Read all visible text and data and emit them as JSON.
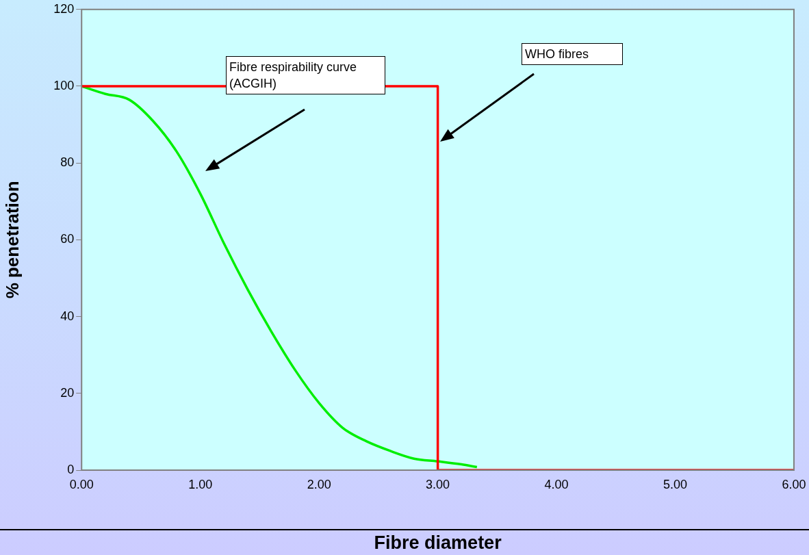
{
  "chart_data": {
    "type": "line",
    "xlabel": "Fibre diameter",
    "ylabel": "% penetration",
    "xlim": [
      0,
      6
    ],
    "xticks": [
      {
        "value": 0,
        "label": "0.00"
      },
      {
        "value": 1,
        "label": "1.00"
      },
      {
        "value": 2,
        "label": "2.00"
      },
      {
        "value": 3,
        "label": "3.00"
      },
      {
        "value": 4,
        "label": "4.00"
      },
      {
        "value": 5,
        "label": "5.00"
      },
      {
        "value": 6,
        "label": "6.00"
      }
    ],
    "ylim": [
      0,
      120
    ],
    "yticks": [
      0,
      20,
      40,
      60,
      80,
      100,
      120
    ],
    "grid": false,
    "legend": false,
    "marker": "none",
    "line_style": "solid",
    "series": [
      {
        "color": "#ff0000",
        "x": [
          0,
          3,
          3,
          6
        ],
        "values": [
          100,
          100,
          0,
          0
        ]
      },
      {
        "color": "#00ee00",
        "x": [
          0,
          0.2,
          0.4,
          0.6,
          0.8,
          1.0,
          1.2,
          1.4,
          1.6,
          1.8,
          2.0,
          2.2,
          2.4,
          2.6,
          2.8,
          3.0,
          3.2,
          3.33
        ],
        "values": [
          100,
          98,
          96.5,
          91,
          83,
          72,
          59,
          47,
          36,
          26,
          17.5,
          11,
          7.5,
          5,
          3,
          2.3,
          1.5,
          0.8
        ]
      }
    ],
    "annotations": [
      "Fibre respirability curve (ACGIH)",
      "WHO fibres"
    ]
  }
}
